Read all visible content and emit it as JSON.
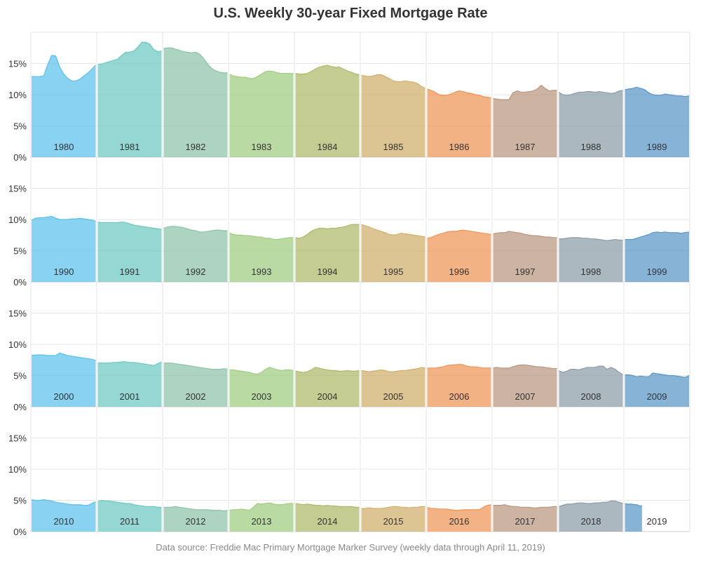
{
  "chart_data": {
    "type": "area",
    "title": "U.S. Weekly 30-year Fixed Mortgage Rate",
    "source": "Data source: Freddie Mac Primary Mortgage Marker Survey (weekly data through April 11, 2019)",
    "ylim": [
      0,
      20
    ],
    "yticks": [
      "0%",
      "5%",
      "10%",
      "15%"
    ],
    "grid": true,
    "layout": "small multiples, 4 rows by decade, 10 columns by year within decade",
    "palette": [
      "#5bc0eb",
      "#6cc8c0",
      "#8cc4a8",
      "#9fcc80",
      "#adb868",
      "#cfae6a",
      "#ee9455",
      "#b8967e",
      "#8a9ca8",
      "#5996c8"
    ],
    "years": [
      {
        "year": "1980",
        "values": [
          12.9,
          12.9,
          12.9,
          13.0,
          14.8,
          16.3,
          16.2,
          14.4,
          13.3,
          12.6,
          12.2,
          12.2,
          12.5,
          13.0,
          13.5,
          14.1,
          14.8
        ]
      },
      {
        "year": "1981",
        "values": [
          14.8,
          14.9,
          15.1,
          15.3,
          15.5,
          15.7,
          16.3,
          16.8,
          16.8,
          17.0,
          17.6,
          18.4,
          18.4,
          18.1,
          17.2,
          16.9,
          17.0
        ]
      },
      {
        "year": "1982",
        "values": [
          17.4,
          17.5,
          17.5,
          17.3,
          17.1,
          16.9,
          16.8,
          16.7,
          16.8,
          16.5,
          15.8,
          14.9,
          14.2,
          13.8,
          13.6,
          13.5,
          13.5
        ]
      },
      {
        "year": "1983",
        "values": [
          13.3,
          13.0,
          12.9,
          12.8,
          12.8,
          12.6,
          12.6,
          12.9,
          13.3,
          13.7,
          13.8,
          13.7,
          13.5,
          13.4,
          13.4,
          13.4,
          13.4
        ]
      },
      {
        "year": "1984",
        "values": [
          13.4,
          13.3,
          13.3,
          13.4,
          13.7,
          14.1,
          14.4,
          14.6,
          14.7,
          14.5,
          14.4,
          14.4,
          14.1,
          13.8,
          13.6,
          13.3,
          13.2
        ]
      },
      {
        "year": "1985",
        "values": [
          13.1,
          13.0,
          12.9,
          13.0,
          13.2,
          13.2,
          12.9,
          12.6,
          12.2,
          12.1,
          12.1,
          12.2,
          12.1,
          12.0,
          11.8,
          11.3,
          11.0
        ]
      },
      {
        "year": "1986",
        "values": [
          10.9,
          10.7,
          10.4,
          10.0,
          9.9,
          9.9,
          10.1,
          10.4,
          10.6,
          10.5,
          10.3,
          10.2,
          10.0,
          9.9,
          9.7,
          9.6,
          9.5
        ]
      },
      {
        "year": "1987",
        "values": [
          9.4,
          9.3,
          9.2,
          9.2,
          9.2,
          10.3,
          10.6,
          10.4,
          10.4,
          10.5,
          10.6,
          10.9,
          11.5,
          11.0,
          10.6,
          10.7,
          10.7
        ]
      },
      {
        "year": "1988",
        "values": [
          10.4,
          10.0,
          9.9,
          10.0,
          10.2,
          10.4,
          10.4,
          10.5,
          10.5,
          10.4,
          10.5,
          10.4,
          10.3,
          10.2,
          10.3,
          10.6,
          10.7
        ]
      },
      {
        "year": "1989",
        "values": [
          10.8,
          10.9,
          11.0,
          11.2,
          11.0,
          10.8,
          10.3,
          10.0,
          9.9,
          9.9,
          10.1,
          10.0,
          9.9,
          9.8,
          9.8,
          9.7,
          9.8
        ]
      },
      {
        "year": "1990",
        "values": [
          9.9,
          10.2,
          10.3,
          10.3,
          10.4,
          10.5,
          10.2,
          10.0,
          10.0,
          10.0,
          10.1,
          10.1,
          10.2,
          10.1,
          10.0,
          9.9,
          9.7
        ]
      },
      {
        "year": "1991",
        "values": [
          9.6,
          9.5,
          9.5,
          9.5,
          9.5,
          9.5,
          9.6,
          9.5,
          9.3,
          9.1,
          9.0,
          8.9,
          8.8,
          8.7,
          8.6,
          8.5,
          8.4
        ]
      },
      {
        "year": "1992",
        "values": [
          8.6,
          8.8,
          8.9,
          8.9,
          8.8,
          8.7,
          8.5,
          8.3,
          8.2,
          8.0,
          8.0,
          8.1,
          8.2,
          8.3,
          8.3,
          8.2,
          8.2
        ]
      },
      {
        "year": "1993",
        "values": [
          7.9,
          7.6,
          7.5,
          7.5,
          7.4,
          7.4,
          7.3,
          7.2,
          7.2,
          7.0,
          7.0,
          6.8,
          6.8,
          6.9,
          7.0,
          7.1,
          7.1
        ]
      },
      {
        "year": "1994",
        "values": [
          7.1,
          7.0,
          7.2,
          7.6,
          8.1,
          8.4,
          8.6,
          8.6,
          8.5,
          8.6,
          8.6,
          8.7,
          8.8,
          9.0,
          9.2,
          9.2,
          9.2
        ]
      },
      {
        "year": "1995",
        "values": [
          9.2,
          9.0,
          8.8,
          8.5,
          8.3,
          8.1,
          7.9,
          7.6,
          7.5,
          7.6,
          7.8,
          7.7,
          7.6,
          7.5,
          7.4,
          7.3,
          7.2
        ]
      },
      {
        "year": "1996",
        "values": [
          7.0,
          7.1,
          7.4,
          7.6,
          7.8,
          8.0,
          8.1,
          8.1,
          8.2,
          8.3,
          8.2,
          8.1,
          8.0,
          7.9,
          7.8,
          7.7,
          7.6
        ]
      },
      {
        "year": "1997",
        "values": [
          7.7,
          7.8,
          7.9,
          7.9,
          8.1,
          8.0,
          7.9,
          7.8,
          7.6,
          7.5,
          7.4,
          7.4,
          7.3,
          7.2,
          7.2,
          7.1,
          7.1
        ]
      },
      {
        "year": "1998",
        "values": [
          6.9,
          6.9,
          7.0,
          7.1,
          7.1,
          7.1,
          7.0,
          7.0,
          6.9,
          6.9,
          6.8,
          6.7,
          6.6,
          6.7,
          6.8,
          6.7,
          6.7
        ]
      },
      {
        "year": "1999",
        "values": [
          6.8,
          6.8,
          6.8,
          7.0,
          7.2,
          7.4,
          7.6,
          7.9,
          8.0,
          7.9,
          8.0,
          7.9,
          7.9,
          7.9,
          7.8,
          7.9,
          8.0
        ]
      },
      {
        "year": "2000",
        "values": [
          8.2,
          8.3,
          8.3,
          8.3,
          8.2,
          8.2,
          8.2,
          8.6,
          8.4,
          8.2,
          8.1,
          8.0,
          7.9,
          7.8,
          7.7,
          7.6,
          7.4
        ]
      },
      {
        "year": "2001",
        "values": [
          7.0,
          7.0,
          7.0,
          7.0,
          7.1,
          7.1,
          7.2,
          7.2,
          7.1,
          7.1,
          7.0,
          6.9,
          6.8,
          6.7,
          6.6,
          6.9,
          7.2
        ]
      },
      {
        "year": "2002",
        "values": [
          7.0,
          7.0,
          7.0,
          6.9,
          6.8,
          6.7,
          6.6,
          6.5,
          6.4,
          6.3,
          6.2,
          6.1,
          6.0,
          6.0,
          6.0,
          6.1,
          6.0
        ]
      },
      {
        "year": "2003",
        "values": [
          5.9,
          5.9,
          5.8,
          5.7,
          5.6,
          5.5,
          5.3,
          5.2,
          5.5,
          6.0,
          6.3,
          6.1,
          5.9,
          5.8,
          5.9,
          5.9,
          5.8
        ]
      },
      {
        "year": "2004",
        "values": [
          5.7,
          5.6,
          5.5,
          5.6,
          5.9,
          6.3,
          6.2,
          6.0,
          5.9,
          5.8,
          5.8,
          5.7,
          5.7,
          5.8,
          5.7,
          5.7,
          5.8
        ]
      },
      {
        "year": "2005",
        "values": [
          5.8,
          5.7,
          5.6,
          5.7,
          5.8,
          5.9,
          5.8,
          5.6,
          5.6,
          5.7,
          5.8,
          5.8,
          5.9,
          6.0,
          6.1,
          6.3,
          6.2
        ]
      },
      {
        "year": "2006",
        "values": [
          6.2,
          6.2,
          6.2,
          6.3,
          6.4,
          6.6,
          6.7,
          6.7,
          6.8,
          6.7,
          6.5,
          6.4,
          6.4,
          6.3,
          6.2,
          6.2,
          6.2
        ]
      },
      {
        "year": "2007",
        "values": [
          6.2,
          6.3,
          6.2,
          6.2,
          6.2,
          6.4,
          6.6,
          6.7,
          6.7,
          6.6,
          6.5,
          6.4,
          6.4,
          6.3,
          6.2,
          6.1,
          6.1
        ]
      },
      {
        "year": "2008",
        "values": [
          5.8,
          5.5,
          5.7,
          6.0,
          6.0,
          5.9,
          6.1,
          6.3,
          6.3,
          6.3,
          6.5,
          6.5,
          6.0,
          6.3,
          6.0,
          5.5,
          5.1
        ]
      },
      {
        "year": "2009",
        "values": [
          5.1,
          5.1,
          5.0,
          4.8,
          4.9,
          4.8,
          4.8,
          5.4,
          5.3,
          5.2,
          5.1,
          5.0,
          5.0,
          4.9,
          4.8,
          4.7,
          5.0
        ]
      },
      {
        "year": "2010",
        "values": [
          5.1,
          5.0,
          5.0,
          5.1,
          5.0,
          4.9,
          4.7,
          4.6,
          4.5,
          4.4,
          4.3,
          4.3,
          4.3,
          4.2,
          4.2,
          4.5,
          4.8
        ]
      },
      {
        "year": "2011",
        "values": [
          4.8,
          5.0,
          4.9,
          4.9,
          4.8,
          4.7,
          4.6,
          4.5,
          4.5,
          4.3,
          4.2,
          4.1,
          4.0,
          4.0,
          4.0,
          3.9,
          3.9
        ]
      },
      {
        "year": "2012",
        "values": [
          3.9,
          3.9,
          3.9,
          4.0,
          3.9,
          3.8,
          3.7,
          3.6,
          3.5,
          3.5,
          3.5,
          3.5,
          3.4,
          3.4,
          3.4,
          3.3,
          3.4
        ]
      },
      {
        "year": "2013",
        "values": [
          3.4,
          3.5,
          3.5,
          3.6,
          3.5,
          3.4,
          3.9,
          4.5,
          4.4,
          4.5,
          4.6,
          4.4,
          4.3,
          4.3,
          4.4,
          4.5,
          4.5
        ]
      },
      {
        "year": "2014",
        "values": [
          4.5,
          4.4,
          4.3,
          4.4,
          4.3,
          4.2,
          4.2,
          4.1,
          4.2,
          4.1,
          4.1,
          4.0,
          4.0,
          4.0,
          4.0,
          3.9,
          3.9
        ]
      },
      {
        "year": "2015",
        "values": [
          3.7,
          3.7,
          3.8,
          3.7,
          3.7,
          3.7,
          3.8,
          3.9,
          4.0,
          4.0,
          3.9,
          3.9,
          3.8,
          3.9,
          3.9,
          4.0,
          4.0
        ]
      },
      {
        "year": "2016",
        "values": [
          3.9,
          3.7,
          3.7,
          3.6,
          3.6,
          3.6,
          3.5,
          3.4,
          3.4,
          3.5,
          3.5,
          3.5,
          3.5,
          3.5,
          3.9,
          4.2,
          4.3
        ]
      },
      {
        "year": "2017",
        "values": [
          4.2,
          4.2,
          4.2,
          4.3,
          4.1,
          4.0,
          4.0,
          3.9,
          3.9,
          3.9,
          3.8,
          3.8,
          3.9,
          3.9,
          3.9,
          4.0,
          4.0
        ]
      },
      {
        "year": "2018",
        "values": [
          4.0,
          4.2,
          4.4,
          4.4,
          4.5,
          4.6,
          4.6,
          4.5,
          4.5,
          4.6,
          4.6,
          4.7,
          4.7,
          4.9,
          4.9,
          4.7,
          4.5
        ]
      },
      {
        "year": "2019",
        "values": [
          4.5,
          4.4,
          4.4,
          4.4,
          4.3,
          4.3,
          4.1,
          4.1
        ],
        "partial_fraction": 0.27
      }
    ]
  }
}
